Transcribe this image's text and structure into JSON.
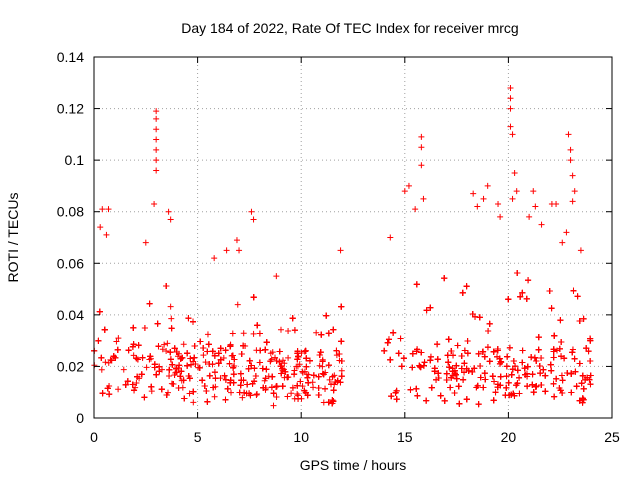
{
  "chart_data": {
    "type": "scatter",
    "title": "Day 184 of 2022, Rate Of TEC Index for receiver mrcg",
    "xlabel": "GPS time / hours",
    "ylabel": "ROTI / TECUs",
    "xlim": [
      0,
      25
    ],
    "ylim": [
      0,
      0.14
    ],
    "xticks": [
      "0",
      "5",
      "10",
      "15",
      "20",
      "25"
    ],
    "yticks": [
      "0",
      "0.02",
      "0.04",
      "0.06",
      "0.08",
      "0.1",
      "0.12",
      "0.14"
    ],
    "grid": true,
    "marker": "+",
    "color": "#ff0000",
    "series": [
      {
        "segments": [
          {
            "hours": [
              0.0,
              0.25,
              0.5,
              0.75,
              1.0,
              1.25,
              1.5,
              1.75,
              2.0,
              2.25,
              2.5,
              2.75,
              3.0,
              3.25,
              3.5,
              3.75,
              4.0,
              4.25,
              4.5,
              4.75,
              5.0,
              5.25,
              5.5,
              5.75,
              6.0,
              6.25,
              6.5,
              6.75,
              7.0,
              7.25,
              7.5,
              7.75,
              8.0,
              8.25,
              8.5,
              8.75,
              9.0,
              9.25,
              9.5,
              9.75,
              10.0,
              10.25,
              10.5,
              10.75,
              11.0,
              11.25,
              11.5,
              11.75,
              12.0
            ],
            "roti_low": [
              0.008,
              0.008,
              0.007,
              0.008,
              0.009,
              0.008,
              0.008,
              0.007,
              0.008,
              0.008,
              0.007,
              0.006,
              0.007,
              0.008,
              0.008,
              0.007,
              0.007,
              0.008,
              0.007,
              0.006,
              0.006,
              0.005,
              0.006,
              0.005,
              0.006,
              0.006,
              0.007,
              0.006,
              0.006,
              0.006,
              0.006,
              0.006,
              0.005,
              0.005,
              0.004,
              0.005,
              0.005,
              0.004,
              0.005,
              0.004,
              0.004,
              0.004,
              0.003,
              0.004,
              0.004,
              0.004,
              0.005,
              0.005,
              0.006
            ],
            "roti_high": [
              0.05,
              0.07,
              0.06,
              0.05,
              0.04,
              0.045,
              0.04,
              0.035,
              0.048,
              0.045,
              0.05,
              0.06,
              0.07,
              0.06,
              0.055,
              0.06,
              0.045,
              0.04,
              0.045,
              0.042,
              0.05,
              0.045,
              0.05,
              0.06,
              0.05,
              0.048,
              0.05,
              0.055,
              0.05,
              0.045,
              0.055,
              0.06,
              0.045,
              0.04,
              0.04,
              0.045,
              0.05,
              0.045,
              0.045,
              0.05,
              0.045,
              0.04,
              0.04,
              0.048,
              0.045,
              0.055,
              0.05,
              0.045,
              0.065
            ]
          },
          {
            "hours": [
              14.0,
              14.25,
              14.5,
              14.75,
              15.0,
              15.25,
              15.5,
              15.75,
              16.0,
              16.25,
              16.5,
              16.75,
              17.0,
              17.25,
              17.5,
              17.75,
              18.0,
              18.25,
              18.5,
              18.75,
              19.0,
              19.25,
              19.5,
              19.75,
              20.0,
              20.25,
              20.5,
              20.75,
              21.0,
              21.25,
              21.5,
              21.75,
              22.0,
              22.25,
              22.5,
              22.75,
              23.0,
              23.25,
              23.5,
              23.75,
              24.0
            ],
            "roti_low": [
              0.008,
              0.007,
              0.006,
              0.006,
              0.005,
              0.006,
              0.006,
              0.005,
              0.006,
              0.006,
              0.005,
              0.005,
              0.006,
              0.006,
              0.005,
              0.006,
              0.003,
              0.004,
              0.005,
              0.005,
              0.005,
              0.006,
              0.005,
              0.005,
              0.005,
              0.006,
              0.005,
              0.005,
              0.006,
              0.005,
              0.005,
              0.005,
              0.004,
              0.005,
              0.005,
              0.004,
              0.005,
              0.005,
              0.005,
              0.006,
              0.007
            ],
            "roti_high": [
              0.045,
              0.05,
              0.06,
              0.055,
              0.07,
              0.065,
              0.06,
              0.075,
              0.06,
              0.055,
              0.05,
              0.065,
              0.055,
              0.05,
              0.05,
              0.055,
              0.06,
              0.065,
              0.07,
              0.075,
              0.07,
              0.065,
              0.06,
              0.065,
              0.08,
              0.075,
              0.07,
              0.065,
              0.075,
              0.065,
              0.06,
              0.06,
              0.06,
              0.065,
              0.06,
              0.06,
              0.075,
              0.065,
              0.06,
              0.05,
              0.04
            ]
          }
        ],
        "spikes": [
          [
            0.4,
            0.081
          ],
          [
            0.7,
            0.081
          ],
          [
            0.3,
            0.074
          ],
          [
            0.6,
            0.071
          ],
          [
            3.0,
            0.119
          ],
          [
            3.0,
            0.116
          ],
          [
            3.0,
            0.112
          ],
          [
            3.0,
            0.108
          ],
          [
            3.0,
            0.104
          ],
          [
            3.0,
            0.1
          ],
          [
            3.0,
            0.096
          ],
          [
            2.9,
            0.083
          ],
          [
            3.6,
            0.08
          ],
          [
            3.7,
            0.077
          ],
          [
            2.5,
            0.068
          ],
          [
            5.8,
            0.062
          ],
          [
            6.4,
            0.065
          ],
          [
            6.9,
            0.069
          ],
          [
            7.0,
            0.065
          ],
          [
            7.6,
            0.08
          ],
          [
            7.7,
            0.077
          ],
          [
            8.8,
            0.055
          ],
          [
            11.9,
            0.065
          ],
          [
            15.0,
            0.088
          ],
          [
            15.2,
            0.09
          ],
          [
            15.8,
            0.109
          ],
          [
            15.8,
            0.105
          ],
          [
            15.8,
            0.098
          ],
          [
            15.9,
            0.085
          ],
          [
            15.5,
            0.081
          ],
          [
            14.3,
            0.07
          ],
          [
            18.3,
            0.087
          ],
          [
            18.5,
            0.082
          ],
          [
            18.8,
            0.085
          ],
          [
            19.0,
            0.09
          ],
          [
            19.6,
            0.078
          ],
          [
            19.5,
            0.083
          ],
          [
            20.1,
            0.128
          ],
          [
            20.1,
            0.124
          ],
          [
            20.1,
            0.12
          ],
          [
            20.1,
            0.113
          ],
          [
            20.2,
            0.11
          ],
          [
            20.3,
            0.095
          ],
          [
            20.4,
            0.088
          ],
          [
            20.2,
            0.085
          ],
          [
            21.2,
            0.088
          ],
          [
            21.3,
            0.082
          ],
          [
            21.0,
            0.078
          ],
          [
            21.6,
            0.075
          ],
          [
            22.1,
            0.083
          ],
          [
            22.3,
            0.083
          ],
          [
            22.6,
            0.068
          ],
          [
            22.9,
            0.11
          ],
          [
            23.0,
            0.104
          ],
          [
            23.0,
            0.1
          ],
          [
            23.1,
            0.094
          ],
          [
            23.2,
            0.088
          ],
          [
            23.1,
            0.084
          ],
          [
            23.5,
            0.065
          ],
          [
            22.8,
            0.072
          ]
        ]
      }
    ]
  }
}
